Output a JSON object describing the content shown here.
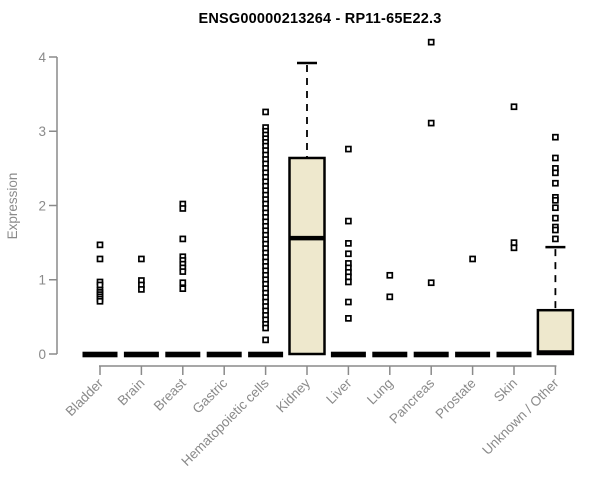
{
  "header": {
    "title": "ENSG00000213264 - RP11-65E22.3"
  },
  "colors": {
    "background": "#ffffff",
    "box_fill": "#EEE8CD",
    "box_stroke": "#000000",
    "median": "#000000",
    "axis": "#8a8a8a",
    "tick_label": "#8a8a8a",
    "title": "#000000"
  },
  "chart_data": {
    "type": "boxplot",
    "title": "ENSG00000213264 - RP11-65E22.3",
    "xlabel": "",
    "ylabel": "Expression",
    "ylim": [
      0,
      4
    ],
    "yticks": [
      0,
      1,
      2,
      3,
      4
    ],
    "grid": false,
    "legend": "none",
    "categories": [
      "Bladder",
      "Brain",
      "Breast",
      "Gastric",
      "Hematopoietic cells",
      "Kidney",
      "Liver",
      "Lung",
      "Pancreas",
      "Prostate",
      "Skin",
      "Unknown / Other"
    ],
    "series": [
      {
        "name": "Bladder",
        "q1": 0,
        "median": 0,
        "q3": 0,
        "whisker_low": 0,
        "whisker_high": 0,
        "outliers": [
          1.47,
          1.28,
          0.97,
          0.93,
          0.86,
          0.83,
          0.8,
          0.77,
          0.74,
          0.71
        ]
      },
      {
        "name": "Brain",
        "q1": 0,
        "median": 0,
        "q3": 0,
        "whisker_low": 0,
        "whisker_high": 0,
        "outliers": [
          1.28,
          0.99,
          0.93,
          0.87
        ]
      },
      {
        "name": "Breast",
        "q1": 0,
        "median": 0,
        "q3": 0,
        "whisker_low": 0,
        "whisker_high": 0,
        "outliers": [
          2.02,
          1.96,
          1.55,
          1.31,
          1.26,
          1.21,
          1.16,
          1.11,
          0.96,
          0.88
        ]
      },
      {
        "name": "Gastric",
        "q1": 0,
        "median": 0,
        "q3": 0,
        "whisker_low": 0,
        "whisker_high": 0,
        "outliers": []
      },
      {
        "name": "Hematopoietic cells",
        "q1": 0,
        "median": 0,
        "q3": 0,
        "whisker_low": 0,
        "whisker_high": 0,
        "outliers": [
          3.26,
          3.05,
          3.0,
          2.95,
          2.9,
          2.85,
          2.8,
          2.74,
          2.68,
          2.62,
          2.56,
          2.5,
          2.44,
          2.38,
          2.32,
          2.26,
          2.2,
          2.14,
          2.08,
          2.02,
          1.96,
          1.9,
          1.84,
          1.78,
          1.72,
          1.66,
          1.6,
          1.54,
          1.48,
          1.42,
          1.36,
          1.3,
          1.24,
          1.18,
          1.12,
          1.06,
          1.0,
          0.94,
          0.88,
          0.82,
          0.76,
          0.7,
          0.64,
          0.58,
          0.52,
          0.46,
          0.4,
          0.35,
          0.19
        ]
      },
      {
        "name": "Kidney",
        "q1": 0,
        "median": 1.56,
        "q3": 2.64,
        "whisker_low": 0,
        "whisker_high": 3.92,
        "outliers": []
      },
      {
        "name": "Liver",
        "q1": 0,
        "median": 0,
        "q3": 0,
        "whisker_low": 0,
        "whisker_high": 0,
        "outliers": [
          2.76,
          1.79,
          1.49,
          1.35,
          1.22,
          1.16,
          1.1,
          1.04,
          0.97,
          0.7,
          0.48
        ]
      },
      {
        "name": "Lung",
        "q1": 0,
        "median": 0,
        "q3": 0,
        "whisker_low": 0,
        "whisker_high": 0,
        "outliers": [
          1.06,
          0.77
        ]
      },
      {
        "name": "Pancreas",
        "q1": 0,
        "median": 0,
        "q3": 0,
        "whisker_low": 0,
        "whisker_high": 0,
        "outliers": [
          4.2,
          3.11,
          0.96
        ]
      },
      {
        "name": "Prostate",
        "q1": 0,
        "median": 0,
        "q3": 0,
        "whisker_low": 0,
        "whisker_high": 0,
        "outliers": [
          1.28
        ]
      },
      {
        "name": "Skin",
        "q1": 0,
        "median": 0,
        "q3": 0,
        "whisker_low": 0,
        "whisker_high": 0,
        "outliers": [
          3.33,
          1.5,
          1.43
        ]
      },
      {
        "name": "Unknown / Other",
        "q1": 0,
        "median": 0.02,
        "q3": 0.59,
        "whisker_low": 0,
        "whisker_high": 1.44,
        "outliers": [
          2.92,
          2.64,
          2.5,
          2.44,
          2.3,
          2.11,
          2.07,
          1.97,
          1.83,
          1.71,
          1.67,
          1.55
        ]
      }
    ]
  }
}
